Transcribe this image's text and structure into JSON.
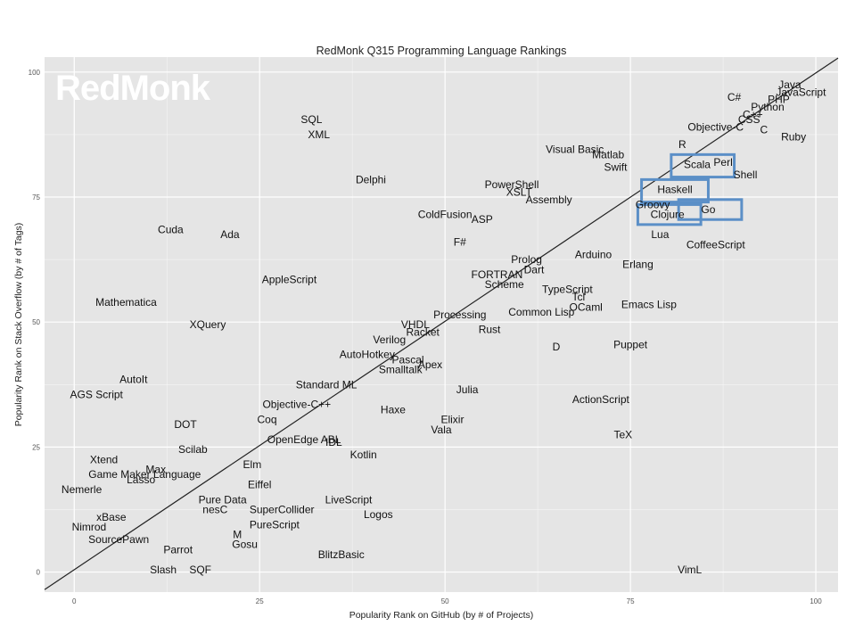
{
  "chart_data": {
    "type": "scatter",
    "title": "RedMonk Q315 Programming Language Rankings",
    "logo": "RedMonk",
    "xlabel": "Popularity Rank on GitHub (by # of Projects)",
    "ylabel": "Popularity Rank on Stack Overflow (by # of Tags)",
    "xlim": [
      -4,
      103
    ],
    "ylim": [
      -4,
      103
    ],
    "xticks": [
      0,
      25,
      50,
      75,
      100
    ],
    "yticks": [
      0,
      25,
      50,
      75,
      100
    ],
    "grid": true,
    "background": "#e5e5e5",
    "gridcolor": "#ffffff",
    "highlight_color": "#5b8fc7",
    "trendline": [
      [
        -4,
        -3.5
      ],
      [
        103,
        102.8
      ]
    ],
    "points": [
      {
        "label": "Java",
        "x": 96.5,
        "y": 97.5
      },
      {
        "label": "JavaScript",
        "x": 98,
        "y": 96
      },
      {
        "label": "PHP",
        "x": 95,
        "y": 94.5
      },
      {
        "label": "Python",
        "x": 93.5,
        "y": 93
      },
      {
        "label": "C#",
        "x": 89,
        "y": 95
      },
      {
        "label": "C++",
        "x": 91.5,
        "y": 91.5
      },
      {
        "label": "CSS",
        "x": 91,
        "y": 90.5
      },
      {
        "label": "C",
        "x": 93,
        "y": 88.5
      },
      {
        "label": "Objective-C",
        "x": 86.5,
        "y": 89
      },
      {
        "label": "Ruby",
        "x": 97,
        "y": 87
      },
      {
        "label": "R",
        "x": 82,
        "y": 85.5
      },
      {
        "label": "Visual Basic",
        "x": 67.5,
        "y": 84.5
      },
      {
        "label": "Matlab",
        "x": 72,
        "y": 83.5
      },
      {
        "label": "Swift",
        "x": 73,
        "y": 81
      },
      {
        "label": "Scala",
        "x": 84,
        "y": 81.5
      },
      {
        "label": "Perl",
        "x": 87.5,
        "y": 82
      },
      {
        "label": "Shell",
        "x": 90.5,
        "y": 79.5
      },
      {
        "label": "Haskell",
        "x": 81,
        "y": 76.5
      },
      {
        "label": "Groovy",
        "x": 78,
        "y": 73.5
      },
      {
        "label": "Go",
        "x": 85.5,
        "y": 72.5
      },
      {
        "label": "Clojure",
        "x": 80,
        "y": 71.5
      },
      {
        "label": "Lua",
        "x": 79,
        "y": 67.5
      },
      {
        "label": "CoffeeScript",
        "x": 86.5,
        "y": 65.5
      },
      {
        "label": "PowerShell",
        "x": 59,
        "y": 77.5
      },
      {
        "label": "XSLT",
        "x": 60,
        "y": 76
      },
      {
        "label": "Assembly",
        "x": 64,
        "y": 74.5
      },
      {
        "label": "ColdFusion",
        "x": 50,
        "y": 71.5
      },
      {
        "label": "ASP",
        "x": 55,
        "y": 70.5
      },
      {
        "label": "F#",
        "x": 52,
        "y": 66
      },
      {
        "label": "Arduino",
        "x": 70,
        "y": 63.5
      },
      {
        "label": "Erlang",
        "x": 76,
        "y": 61.5
      },
      {
        "label": "Prolog",
        "x": 61,
        "y": 62.5
      },
      {
        "label": "Dart",
        "x": 62,
        "y": 60.5
      },
      {
        "label": "FORTRAN",
        "x": 57,
        "y": 59.5
      },
      {
        "label": "Scheme",
        "x": 58,
        "y": 57.5
      },
      {
        "label": "TypeScript",
        "x": 66.5,
        "y": 56.5
      },
      {
        "label": "Tcl",
        "x": 68,
        "y": 55
      },
      {
        "label": "OCaml",
        "x": 69,
        "y": 53
      },
      {
        "label": "Emacs Lisp",
        "x": 77.5,
        "y": 53.5
      },
      {
        "label": "Common Lisp",
        "x": 63,
        "y": 52
      },
      {
        "label": "Processing",
        "x": 52,
        "y": 51.5
      },
      {
        "label": "Rust",
        "x": 56,
        "y": 48.5
      },
      {
        "label": "VHDL",
        "x": 46,
        "y": 49.5
      },
      {
        "label": "Racket",
        "x": 47,
        "y": 48
      },
      {
        "label": "Verilog",
        "x": 42.5,
        "y": 46.5
      },
      {
        "label": "AutoHotkey",
        "x": 39.5,
        "y": 43.5
      },
      {
        "label": "Pascal",
        "x": 45,
        "y": 42.5
      },
      {
        "label": "Apex",
        "x": 48,
        "y": 41.5
      },
      {
        "label": "Smalltalk",
        "x": 44,
        "y": 40.5
      },
      {
        "label": "D",
        "x": 65,
        "y": 45
      },
      {
        "label": "Puppet",
        "x": 75,
        "y": 45.5
      },
      {
        "label": "Standard ML",
        "x": 34,
        "y": 37.5
      },
      {
        "label": "Julia",
        "x": 53,
        "y": 36.5
      },
      {
        "label": "ActionScript",
        "x": 71,
        "y": 34.5
      },
      {
        "label": "Objective-C++",
        "x": 30,
        "y": 33.5
      },
      {
        "label": "Haxe",
        "x": 43,
        "y": 32.5
      },
      {
        "label": "Coq",
        "x": 26,
        "y": 30.5
      },
      {
        "label": "Elixir",
        "x": 51,
        "y": 30.5
      },
      {
        "label": "Vala",
        "x": 49.5,
        "y": 28.5
      },
      {
        "label": "TeX",
        "x": 74,
        "y": 27.5
      },
      {
        "label": "OpenEdge ABL",
        "x": 31,
        "y": 26.5
      },
      {
        "label": "IDL",
        "x": 35,
        "y": 26
      },
      {
        "label": "Kotlin",
        "x": 39,
        "y": 23.5
      },
      {
        "label": "SQL",
        "x": 32,
        "y": 90.5
      },
      {
        "label": "XML",
        "x": 33,
        "y": 87.5
      },
      {
        "label": "Delphi",
        "x": 40,
        "y": 78.5
      },
      {
        "label": "Cuda",
        "x": 13,
        "y": 68.5
      },
      {
        "label": "Ada",
        "x": 21,
        "y": 67.5
      },
      {
        "label": "AppleScript",
        "x": 29,
        "y": 58.5
      },
      {
        "label": "Mathematica",
        "x": 7,
        "y": 54
      },
      {
        "label": "XQuery",
        "x": 18,
        "y": 49.5
      },
      {
        "label": "AutoIt",
        "x": 8,
        "y": 38.5
      },
      {
        "label": "AGS Script",
        "x": 3,
        "y": 35.5
      },
      {
        "label": "DOT",
        "x": 15,
        "y": 29.5
      },
      {
        "label": "Scilab",
        "x": 16,
        "y": 24.5
      },
      {
        "label": "Xtend",
        "x": 4,
        "y": 22.5
      },
      {
        "label": "Elm",
        "x": 24,
        "y": 21.5
      },
      {
        "label": "Max",
        "x": 11,
        "y": 20.5
      },
      {
        "label": "Game Maker Language",
        "x": 9.5,
        "y": 19.5
      },
      {
        "label": "Lasso",
        "x": 9,
        "y": 18.5
      },
      {
        "label": "Eiffel",
        "x": 25,
        "y": 17.5
      },
      {
        "label": "Nemerle",
        "x": 1,
        "y": 16.5
      },
      {
        "label": "Pure Data",
        "x": 20,
        "y": 14.5
      },
      {
        "label": "nesC",
        "x": 19,
        "y": 12.5
      },
      {
        "label": "LiveScript",
        "x": 37,
        "y": 14.5
      },
      {
        "label": "SuperCollider",
        "x": 28,
        "y": 12.5
      },
      {
        "label": "Logos",
        "x": 41,
        "y": 11.5
      },
      {
        "label": "xBase",
        "x": 5,
        "y": 11
      },
      {
        "label": "PureScript",
        "x": 27,
        "y": 9.5
      },
      {
        "label": "Nimrod",
        "x": 2,
        "y": 9
      },
      {
        "label": "M",
        "x": 22,
        "y": 7.5
      },
      {
        "label": "SourcePawn",
        "x": 6,
        "y": 6.5
      },
      {
        "label": "Gosu",
        "x": 23,
        "y": 5.5
      },
      {
        "label": "Parrot",
        "x": 14,
        "y": 4.5
      },
      {
        "label": "BlitzBasic",
        "x": 36,
        "y": 3.5
      },
      {
        "label": "Slash",
        "x": 12,
        "y": 0.5
      },
      {
        "label": "SQF",
        "x": 17,
        "y": 0.5
      },
      {
        "label": "VimL",
        "x": 83,
        "y": 0.5
      }
    ],
    "highlight_boxes": [
      {
        "label": "Scala",
        "x0": 80.5,
        "x1": 89,
        "y0": 79,
        "y1": 83.5
      },
      {
        "label": "Haskell",
        "x0": 76.5,
        "x1": 85.5,
        "y0": 74,
        "y1": 78.5
      },
      {
        "label": "Clojure",
        "x0": 76,
        "x1": 84.5,
        "y0": 69.5,
        "y1": 73.5
      },
      {
        "label": "Go",
        "x0": 81.5,
        "x1": 90,
        "y0": 70.5,
        "y1": 74.5
      }
    ]
  }
}
